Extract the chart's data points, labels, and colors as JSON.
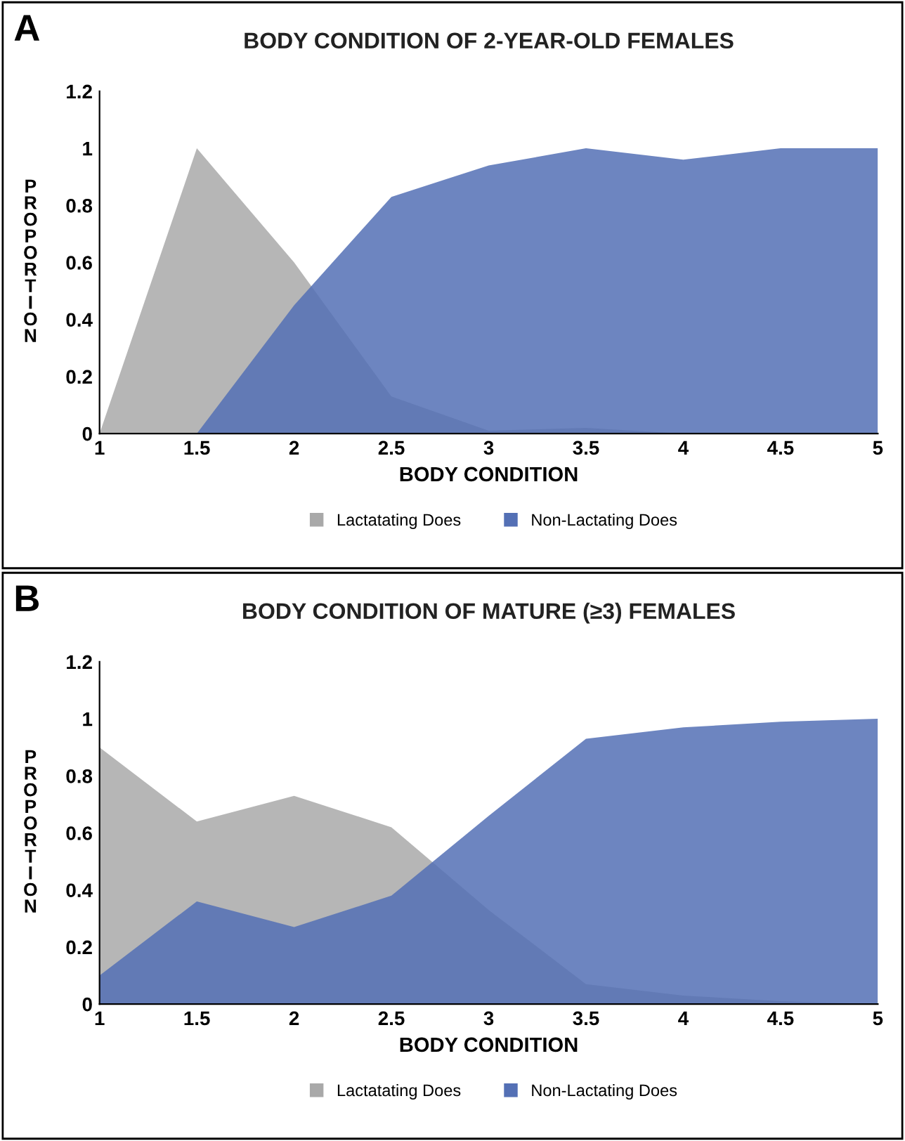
{
  "chart_data": [
    {
      "type": "area",
      "title": "BODY CONDITION OF 2-YEAR-OLD FEMALES",
      "xlabel": "BODY CONDITION",
      "ylabel": "PROPORTION",
      "annotations": [
        "A"
      ],
      "x": [
        1,
        1.5,
        2,
        2.5,
        3,
        3.5,
        4,
        4.5,
        5
      ],
      "xlim": [
        1,
        5
      ],
      "xticks": [
        1,
        1.5,
        2,
        2.5,
        3,
        3.5,
        4,
        4.5,
        5
      ],
      "ylim": [
        0,
        1.2
      ],
      "yticks": [
        0,
        0.2,
        0.4,
        0.6,
        0.8,
        1,
        1.2
      ],
      "legend": "bottom",
      "grid": false,
      "series": [
        {
          "name": "Lactatating Does",
          "color": "#a9a9a9",
          "values": [
            0,
            1,
            0.6,
            0.13,
            0.01,
            0.02,
            0,
            0,
            0
          ]
        },
        {
          "name": "Non-Lactating Does",
          "color": "#5470b5",
          "values": [
            null,
            0,
            0.45,
            0.83,
            0.94,
            1,
            0.96,
            1,
            1
          ]
        }
      ]
    },
    {
      "type": "area",
      "title": "BODY CONDITION OF MATURE (≥3) FEMALES",
      "xlabel": "BODY CONDITION",
      "ylabel": "PROPORTION",
      "annotations": [
        "B"
      ],
      "x": [
        1,
        1.5,
        2,
        2.5,
        3,
        3.5,
        4,
        4.5,
        5
      ],
      "xlim": [
        1,
        5
      ],
      "xticks": [
        1,
        1.5,
        2,
        2.5,
        3,
        3.5,
        4,
        4.5,
        5
      ],
      "ylim": [
        0,
        1.2
      ],
      "yticks": [
        0,
        0.2,
        0.4,
        0.6,
        0.8,
        1,
        1.2
      ],
      "legend": "bottom",
      "grid": false,
      "series": [
        {
          "name": "Lactatating Does",
          "color": "#a9a9a9",
          "values": [
            0.9,
            0.64,
            0.73,
            0.62,
            0.33,
            0.07,
            0.03,
            0.01,
            0
          ]
        },
        {
          "name": "Non-Lactating Does",
          "color": "#5470b5",
          "values": [
            0.1,
            0.36,
            0.27,
            0.38,
            0.66,
            0.93,
            0.97,
            0.99,
            1
          ]
        }
      ]
    }
  ]
}
